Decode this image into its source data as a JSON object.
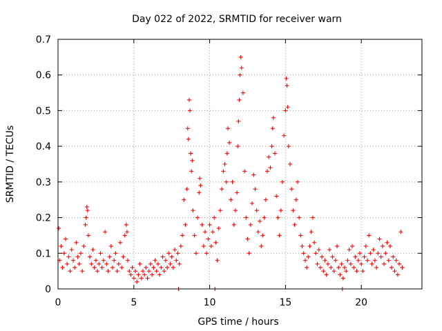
{
  "chart_data": {
    "type": "scatter",
    "title": "Day 022 of 2022, SRMTID for receiver warn",
    "xlabel": "GPS time / hours",
    "ylabel": "SRMTID / TECUs",
    "xlim": [
      0,
      24
    ],
    "ylim": [
      0,
      0.7
    ],
    "xticks": [
      0,
      5,
      10,
      15,
      20
    ],
    "yticks": [
      0,
      0.1,
      0.2,
      0.3,
      0.4,
      0.5,
      0.6,
      0.7
    ],
    "grid": true,
    "marker": "+",
    "color": "#ff0000",
    "series": [
      {
        "name": "SRMTID",
        "points": [
          [
            0.05,
            0.17
          ],
          [
            0.1,
            0.08
          ],
          [
            0.2,
            0.12
          ],
          [
            0.3,
            0.06
          ],
          [
            0.4,
            0.1
          ],
          [
            0.5,
            0.14
          ],
          [
            0.6,
            0.07
          ],
          [
            0.7,
            0.09
          ],
          [
            0.8,
            0.05
          ],
          [
            0.9,
            0.11
          ],
          [
            1.0,
            0.08
          ],
          [
            1.1,
            0.06
          ],
          [
            1.2,
            0.13
          ],
          [
            1.3,
            0.09
          ],
          [
            1.4,
            0.07
          ],
          [
            1.5,
            0.1
          ],
          [
            1.6,
            0.05
          ],
          [
            1.7,
            0.12
          ],
          [
            1.8,
            0.18
          ],
          [
            1.85,
            0.2
          ],
          [
            1.9,
            0.23
          ],
          [
            1.95,
            0.22
          ],
          [
            2.0,
            0.15
          ],
          [
            2.1,
            0.09
          ],
          [
            2.2,
            0.07
          ],
          [
            2.3,
            0.11
          ],
          [
            2.4,
            0.06
          ],
          [
            2.5,
            0.08
          ],
          [
            2.6,
            0.05
          ],
          [
            2.7,
            0.07
          ],
          [
            2.8,
            0.1
          ],
          [
            2.9,
            0.06
          ],
          [
            3.0,
            0.08
          ],
          [
            3.1,
            0.16
          ],
          [
            3.2,
            0.07
          ],
          [
            3.3,
            0.05
          ],
          [
            3.4,
            0.09
          ],
          [
            3.5,
            0.12
          ],
          [
            3.6,
            0.06
          ],
          [
            3.7,
            0.08
          ],
          [
            3.8,
            0.1
          ],
          [
            3.9,
            0.05
          ],
          [
            4.0,
            0.07
          ],
          [
            4.1,
            0.13
          ],
          [
            4.2,
            0.06
          ],
          [
            4.3,
            0.09
          ],
          [
            4.4,
            0.15
          ],
          [
            4.5,
            0.18
          ],
          [
            4.55,
            0.16
          ],
          [
            4.6,
            0.08
          ],
          [
            4.7,
            0.05
          ],
          [
            4.8,
            0.04
          ],
          [
            4.9,
            0.06
          ],
          [
            5.0,
            0.03
          ],
          [
            5.1,
            0.05
          ],
          [
            5.2,
            0.02
          ],
          [
            5.3,
            0.04
          ],
          [
            5.4,
            0.07
          ],
          [
            5.5,
            0.03
          ],
          [
            5.6,
            0.05
          ],
          [
            5.7,
            0.04
          ],
          [
            5.8,
            0.06
          ],
          [
            5.9,
            0.03
          ],
          [
            6.0,
            0.05
          ],
          [
            6.1,
            0.07
          ],
          [
            6.2,
            0.04
          ],
          [
            6.3,
            0.06
          ],
          [
            6.4,
            0.08
          ],
          [
            6.5,
            0.05
          ],
          [
            6.6,
            0.07
          ],
          [
            6.7,
            0.04
          ],
          [
            6.8,
            0.06
          ],
          [
            6.9,
            0.09
          ],
          [
            7.0,
            0.05
          ],
          [
            7.1,
            0.08
          ],
          [
            7.2,
            0.06
          ],
          [
            7.3,
            0.1
          ],
          [
            7.4,
            0.07
          ],
          [
            7.5,
            0.09
          ],
          [
            7.6,
            0.06
          ],
          [
            7.7,
            0.11
          ],
          [
            7.8,
            0.08
          ],
          [
            7.9,
            0.1
          ],
          [
            7.95,
            0.0
          ],
          [
            8.0,
            0.07
          ],
          [
            8.1,
            0.12
          ],
          [
            8.2,
            0.15
          ],
          [
            8.3,
            0.25
          ],
          [
            8.4,
            0.18
          ],
          [
            8.5,
            0.28
          ],
          [
            8.55,
            0.45
          ],
          [
            8.6,
            0.42
          ],
          [
            8.65,
            0.53
          ],
          [
            8.7,
            0.5
          ],
          [
            8.75,
            0.38
          ],
          [
            8.8,
            0.33
          ],
          [
            8.85,
            0.36
          ],
          [
            8.9,
            0.22
          ],
          [
            9.0,
            0.15
          ],
          [
            9.1,
            0.1
          ],
          [
            9.2,
            0.2
          ],
          [
            9.3,
            0.27
          ],
          [
            9.35,
            0.31
          ],
          [
            9.4,
            0.29
          ],
          [
            9.5,
            0.18
          ],
          [
            9.6,
            0.12
          ],
          [
            9.7,
            0.16
          ],
          [
            9.8,
            0.1
          ],
          [
            9.9,
            0.14
          ],
          [
            10.0,
            0.18
          ],
          [
            10.1,
            0.12
          ],
          [
            10.2,
            0.16
          ],
          [
            10.3,
            0.2
          ],
          [
            10.35,
            0.0
          ],
          [
            10.4,
            0.13
          ],
          [
            10.5,
            0.08
          ],
          [
            10.6,
            0.17
          ],
          [
            10.7,
            0.22
          ],
          [
            10.8,
            0.28
          ],
          [
            10.9,
            0.33
          ],
          [
            11.0,
            0.35
          ],
          [
            11.1,
            0.3
          ],
          [
            11.15,
            0.38
          ],
          [
            11.2,
            0.45
          ],
          [
            11.3,
            0.41
          ],
          [
            11.4,
            0.25
          ],
          [
            11.5,
            0.3
          ],
          [
            11.6,
            0.18
          ],
          [
            11.7,
            0.22
          ],
          [
            11.8,
            0.27
          ],
          [
            11.85,
            0.4
          ],
          [
            11.9,
            0.47
          ],
          [
            11.95,
            0.53
          ],
          [
            12.0,
            0.6
          ],
          [
            12.05,
            0.65
          ],
          [
            12.1,
            0.62
          ],
          [
            12.2,
            0.55
          ],
          [
            12.3,
            0.33
          ],
          [
            12.4,
            0.2
          ],
          [
            12.5,
            0.14
          ],
          [
            12.6,
            0.1
          ],
          [
            12.7,
            0.18
          ],
          [
            12.8,
            0.24
          ],
          [
            12.9,
            0.32
          ],
          [
            13.0,
            0.28
          ],
          [
            13.1,
            0.22
          ],
          [
            13.2,
            0.16
          ],
          [
            13.3,
            0.19
          ],
          [
            13.4,
            0.12
          ],
          [
            13.5,
            0.15
          ],
          [
            13.6,
            0.2
          ],
          [
            13.7,
            0.25
          ],
          [
            13.8,
            0.33
          ],
          [
            13.9,
            0.37
          ],
          [
            14.0,
            0.34
          ],
          [
            14.1,
            0.4
          ],
          [
            14.15,
            0.45
          ],
          [
            14.2,
            0.48
          ],
          [
            14.3,
            0.38
          ],
          [
            14.4,
            0.26
          ],
          [
            14.5,
            0.2
          ],
          [
            14.6,
            0.15
          ],
          [
            14.7,
            0.22
          ],
          [
            14.8,
            0.3
          ],
          [
            14.9,
            0.43
          ],
          [
            15.0,
            0.5
          ],
          [
            15.05,
            0.59
          ],
          [
            15.1,
            0.57
          ],
          [
            15.15,
            0.51
          ],
          [
            15.2,
            0.4
          ],
          [
            15.3,
            0.35
          ],
          [
            15.4,
            0.28
          ],
          [
            15.5,
            0.22
          ],
          [
            15.6,
            0.18
          ],
          [
            15.7,
            0.25
          ],
          [
            15.8,
            0.3
          ],
          [
            15.9,
            0.2
          ],
          [
            16.0,
            0.15
          ],
          [
            16.1,
            0.12
          ],
          [
            16.2,
            0.1
          ],
          [
            16.3,
            0.08
          ],
          [
            16.4,
            0.06
          ],
          [
            16.5,
            0.09
          ],
          [
            16.6,
            0.12
          ],
          [
            16.7,
            0.16
          ],
          [
            16.8,
            0.2
          ],
          [
            16.9,
            0.13
          ],
          [
            17.0,
            0.1
          ],
          [
            17.1,
            0.07
          ],
          [
            17.2,
            0.11
          ],
          [
            17.3,
            0.06
          ],
          [
            17.4,
            0.09
          ],
          [
            17.5,
            0.05
          ],
          [
            17.6,
            0.08
          ],
          [
            17.7,
            0.04
          ],
          [
            17.8,
            0.07
          ],
          [
            17.9,
            0.11
          ],
          [
            18.0,
            0.06
          ],
          [
            18.1,
            0.09
          ],
          [
            18.2,
            0.05
          ],
          [
            18.3,
            0.08
          ],
          [
            18.4,
            0.12
          ],
          [
            18.5,
            0.06
          ],
          [
            18.6,
            0.04
          ],
          [
            18.7,
            0.07
          ],
          [
            18.75,
            0.0
          ],
          [
            18.8,
            0.03
          ],
          [
            18.9,
            0.06
          ],
          [
            19.0,
            0.05
          ],
          [
            19.1,
            0.08
          ],
          [
            19.2,
            0.11
          ],
          [
            19.3,
            0.07
          ],
          [
            19.4,
            0.12
          ],
          [
            19.5,
            0.06
          ],
          [
            19.6,
            0.09
          ],
          [
            19.7,
            0.05
          ],
          [
            19.8,
            0.08
          ],
          [
            19.9,
            0.1
          ],
          [
            20.0,
            0.07
          ],
          [
            20.1,
            0.05
          ],
          [
            20.2,
            0.09
          ],
          [
            20.3,
            0.12
          ],
          [
            20.4,
            0.08
          ],
          [
            20.5,
            0.15
          ],
          [
            20.6,
            0.1
          ],
          [
            20.7,
            0.07
          ],
          [
            20.8,
            0.11
          ],
          [
            20.9,
            0.08
          ],
          [
            21.0,
            0.06
          ],
          [
            21.1,
            0.1
          ],
          [
            21.2,
            0.14
          ],
          [
            21.3,
            0.09
          ],
          [
            21.4,
            0.12
          ],
          [
            21.5,
            0.07
          ],
          [
            21.6,
            0.1
          ],
          [
            21.7,
            0.13
          ],
          [
            21.8,
            0.08
          ],
          [
            21.9,
            0.12
          ],
          [
            22.0,
            0.06
          ],
          [
            22.1,
            0.09
          ],
          [
            22.2,
            0.05
          ],
          [
            22.3,
            0.08
          ],
          [
            22.4,
            0.04
          ],
          [
            22.5,
            0.07
          ],
          [
            22.6,
            0.16
          ],
          [
            22.7,
            0.06
          ]
        ]
      }
    ]
  }
}
